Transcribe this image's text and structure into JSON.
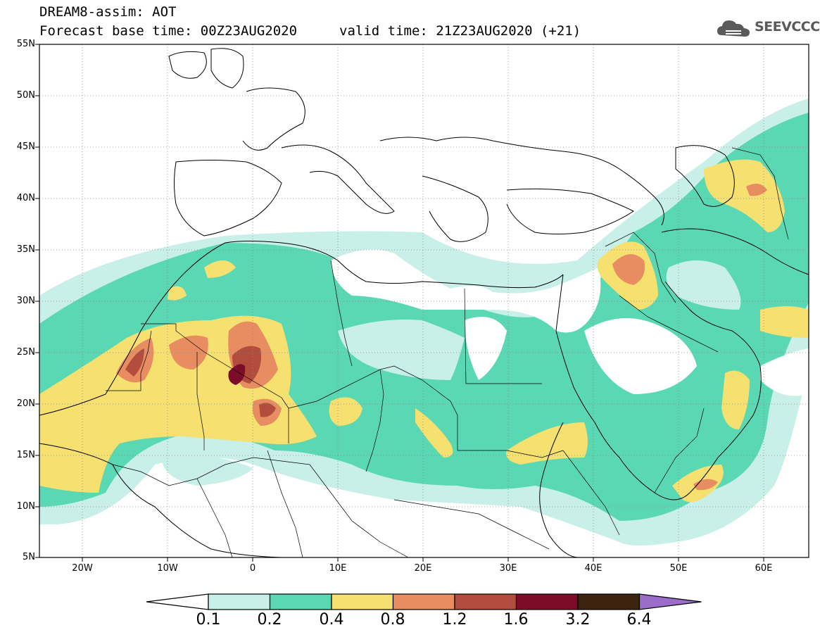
{
  "title": {
    "line1": "DREAM8-assim: AOT",
    "line2": "Forecast base time: 00Z23AUG2020",
    "valid": "valid time: 21Z23AUG2020 (+21)"
  },
  "logo": {
    "text": "SEEVCCC",
    "icon": "cloud-icon",
    "color": "#5a5a5a"
  },
  "axes": {
    "lat_labels": [
      "55N",
      "50N",
      "45N",
      "40N",
      "35N",
      "30N",
      "25N",
      "20N",
      "15N",
      "10N",
      "5N"
    ],
    "lon_labels": [
      "20W",
      "10W",
      "0",
      "10E",
      "20E",
      "30E",
      "40E",
      "50E",
      "60E"
    ]
  },
  "colorbar": {
    "levels": [
      "0.1",
      "0.2",
      "0.4",
      "0.8",
      "1.2",
      "1.6",
      "3.2",
      "6.4"
    ],
    "colors": [
      "#c8f0e8",
      "#5ad8b4",
      "#f5e070",
      "#e88c62",
      "#b24c3c",
      "#7c0c28",
      "#3c2410",
      "#9a6ec8"
    ]
  }
}
